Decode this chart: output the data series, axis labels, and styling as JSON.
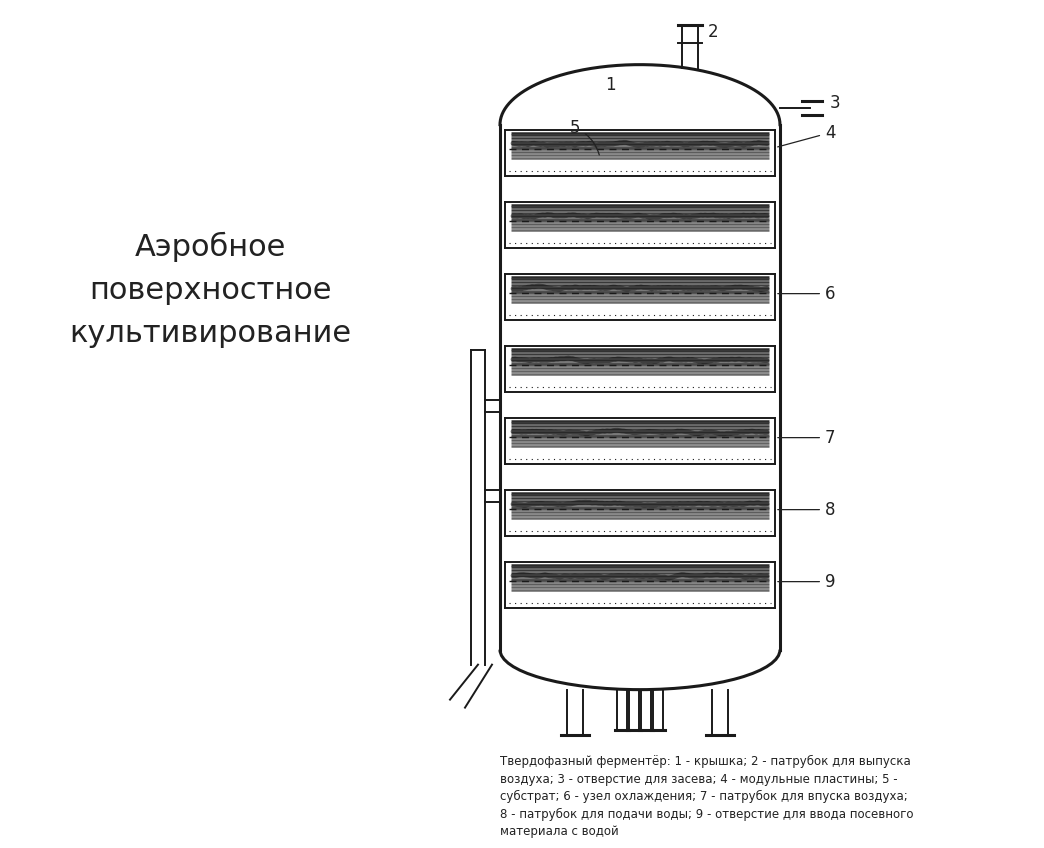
{
  "title_left": "Аэробное\nповерхностное\nкультивирование",
  "caption": "Твердофазный ферментёр: 1 - крышка; 2 - патрубок для выпуска\nвоздуха; 3 - отверстие для засева; 4 - модульные пластины; 5 -\nсубстрат; 6 - узел охлаждения; 7 - патрубок для впуска воздуха;\n8 - патрубок для подачи воды; 9 - отверстие для ввода посевного\nматериала с водой",
  "bg_color": "#ffffff",
  "line_color": "#1a1a1a",
  "label_color": "#222222"
}
